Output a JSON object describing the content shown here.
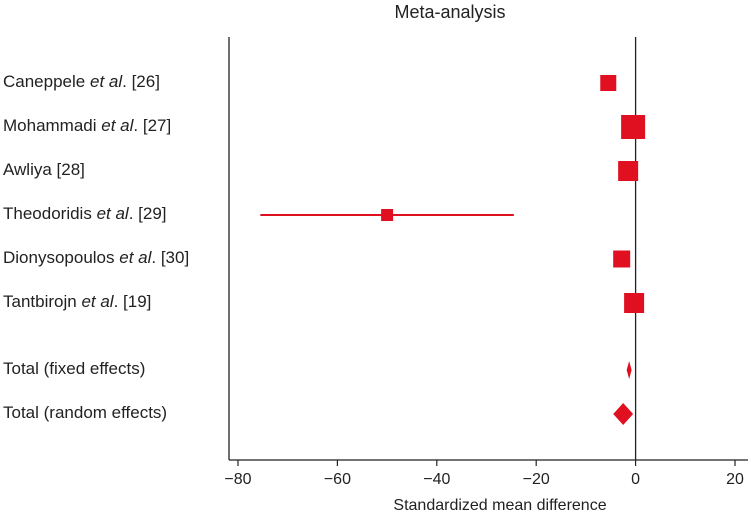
{
  "chart_data": {
    "type": "forest",
    "title": "Meta-analysis",
    "xlabel": "Standardized mean difference",
    "xlim": [
      -82,
      22
    ],
    "xticks": [
      -80,
      -60,
      -40,
      -20,
      0,
      20
    ],
    "xtick_labels": [
      "−80",
      "−60",
      "−40",
      "−20",
      "0",
      "20"
    ],
    "reference_line": 0,
    "marker_color": "#e01020",
    "studies": [
      {
        "author": "Caneppele",
        "etal": "et al",
        "suffix": ". [26]",
        "smd": -5.5,
        "ci": [
          -6.3,
          -4.7
        ],
        "weight_size": 16
      },
      {
        "author": "Mohammadi",
        "etal": "et al",
        "suffix": ". [27]",
        "smd": -0.5,
        "ci": [
          -2.5,
          1.5
        ],
        "weight_size": 24
      },
      {
        "author": "Awliya [28]",
        "etal": "",
        "suffix": "",
        "smd": -1.5,
        "ci": [
          -3.0,
          0.0
        ],
        "weight_size": 20
      },
      {
        "author": "Theodoridis",
        "etal": "et al",
        "suffix": ". [29]",
        "smd": -50.0,
        "ci": [
          -75.5,
          -24.5
        ],
        "weight_size": 12
      },
      {
        "author": "Dionysopoulos",
        "etal": "et al",
        "suffix": ". [30]",
        "smd": -2.8,
        "ci": [
          -4.2,
          -1.2
        ],
        "weight_size": 17
      },
      {
        "author": "Tantbirojn",
        "etal": "et al",
        "suffix": ". [19]",
        "smd": -0.3,
        "ci": [
          -1.6,
          1.0
        ],
        "weight_size": 20
      }
    ],
    "pooled": [
      {
        "label": "Total (fixed effects)",
        "smd": -1.3,
        "ci": [
          -1.8,
          -0.8
        ]
      },
      {
        "label": "Total (random effects)",
        "smd": -2.5,
        "ci": [
          -4.5,
          -0.5
        ]
      }
    ]
  }
}
